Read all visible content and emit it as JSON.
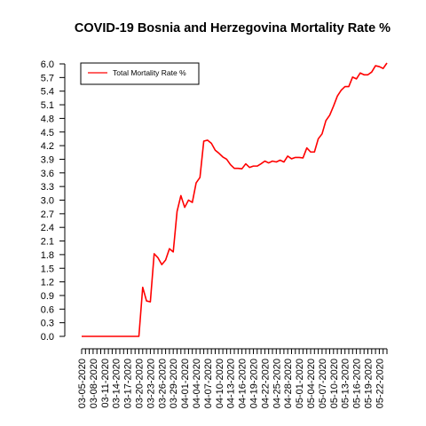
{
  "chart_data": {
    "type": "line",
    "title": "COVID-19 Bosnia and Herzegovina Mortality Rate %",
    "xlabel": "",
    "ylabel": "",
    "ylim": [
      0.0,
      6.0
    ],
    "y_ticks": [
      "0.0",
      "0.3",
      "0.6",
      "0.9",
      "1.2",
      "1.5",
      "1.8",
      "2.1",
      "2.4",
      "2.7",
      "3.0",
      "3.3",
      "3.6",
      "3.9",
      "4.2",
      "4.5",
      "4.8",
      "5.1",
      "5.4",
      "5.7",
      "6.0"
    ],
    "x_tick_labels": [
      "03-05-2020",
      "03-08-2020",
      "03-11-2020",
      "03-14-2020",
      "03-17-2020",
      "03-20-2020",
      "03-23-2020",
      "03-26-2020",
      "03-29-2020",
      "04-01-2020",
      "04-04-2020",
      "04-07-2020",
      "04-10-2020",
      "04-13-2020",
      "04-16-2020",
      "04-19-2020",
      "04-22-2020",
      "04-25-2020",
      "04-28-2020",
      "05-01-2020",
      "05-04-2020",
      "05-07-2020",
      "05-10-2020",
      "05-13-2020",
      "05-16-2020",
      "05-19-2020",
      "05-22-2020"
    ],
    "legend": {
      "position": "top-left",
      "entries": [
        "Total Mortality Rate %"
      ]
    },
    "grid": false,
    "series": [
      {
        "name": "Total Mortality Rate %",
        "color": "#ff0000",
        "x": [
          "03-05-2020",
          "03-06-2020",
          "03-07-2020",
          "03-08-2020",
          "03-09-2020",
          "03-10-2020",
          "03-11-2020",
          "03-12-2020",
          "03-13-2020",
          "03-14-2020",
          "03-15-2020",
          "03-16-2020",
          "03-17-2020",
          "03-18-2020",
          "03-19-2020",
          "03-20-2020",
          "03-21-2020",
          "03-22-2020",
          "03-23-2020",
          "03-24-2020",
          "03-25-2020",
          "03-26-2020",
          "03-27-2020",
          "03-28-2020",
          "03-29-2020",
          "03-30-2020",
          "03-31-2020",
          "04-01-2020",
          "04-02-2020",
          "04-03-2020",
          "04-04-2020",
          "04-05-2020",
          "04-06-2020",
          "04-07-2020",
          "04-08-2020",
          "04-09-2020",
          "04-10-2020",
          "04-11-2020",
          "04-12-2020",
          "04-13-2020",
          "04-14-2020",
          "04-15-2020",
          "04-16-2020",
          "04-17-2020",
          "04-18-2020",
          "04-19-2020",
          "04-20-2020",
          "04-21-2020",
          "04-22-2020",
          "04-23-2020",
          "04-24-2020",
          "04-25-2020",
          "04-26-2020",
          "04-27-2020",
          "04-28-2020",
          "04-29-2020",
          "04-30-2020",
          "05-01-2020",
          "05-02-2020",
          "05-03-2020",
          "05-04-2020",
          "05-05-2020",
          "05-06-2020",
          "05-07-2020",
          "05-08-2020",
          "05-09-2020",
          "05-10-2020",
          "05-11-2020",
          "05-12-2020",
          "05-13-2020",
          "05-14-2020",
          "05-15-2020",
          "05-16-2020",
          "05-17-2020",
          "05-18-2020",
          "05-19-2020",
          "05-20-2020",
          "05-21-2020",
          "05-22-2020",
          "05-23-2020",
          "05-24-2020"
        ],
        "values": [
          0.0,
          0.0,
          0.0,
          0.0,
          0.0,
          0.0,
          0.0,
          0.0,
          0.0,
          0.0,
          0.0,
          0.0,
          0.0,
          0.0,
          0.0,
          0.0,
          1.08,
          0.78,
          0.76,
          1.82,
          1.73,
          1.58,
          1.68,
          1.93,
          1.86,
          2.75,
          3.1,
          2.84,
          3.0,
          2.95,
          3.38,
          3.5,
          4.3,
          4.32,
          4.25,
          4.1,
          4.03,
          3.95,
          3.9,
          3.78,
          3.7,
          3.7,
          3.69,
          3.8,
          3.72,
          3.75,
          3.75,
          3.8,
          3.86,
          3.82,
          3.86,
          3.84,
          3.88,
          3.84,
          3.97,
          3.91,
          3.94,
          3.94,
          3.93,
          4.15,
          4.06,
          4.06,
          4.35,
          4.46,
          4.75,
          4.87,
          5.07,
          5.29,
          5.42,
          5.5,
          5.5,
          5.71,
          5.67,
          5.8,
          5.76,
          5.76,
          5.82,
          5.96,
          5.94,
          5.9,
          6.02
        ]
      }
    ]
  }
}
